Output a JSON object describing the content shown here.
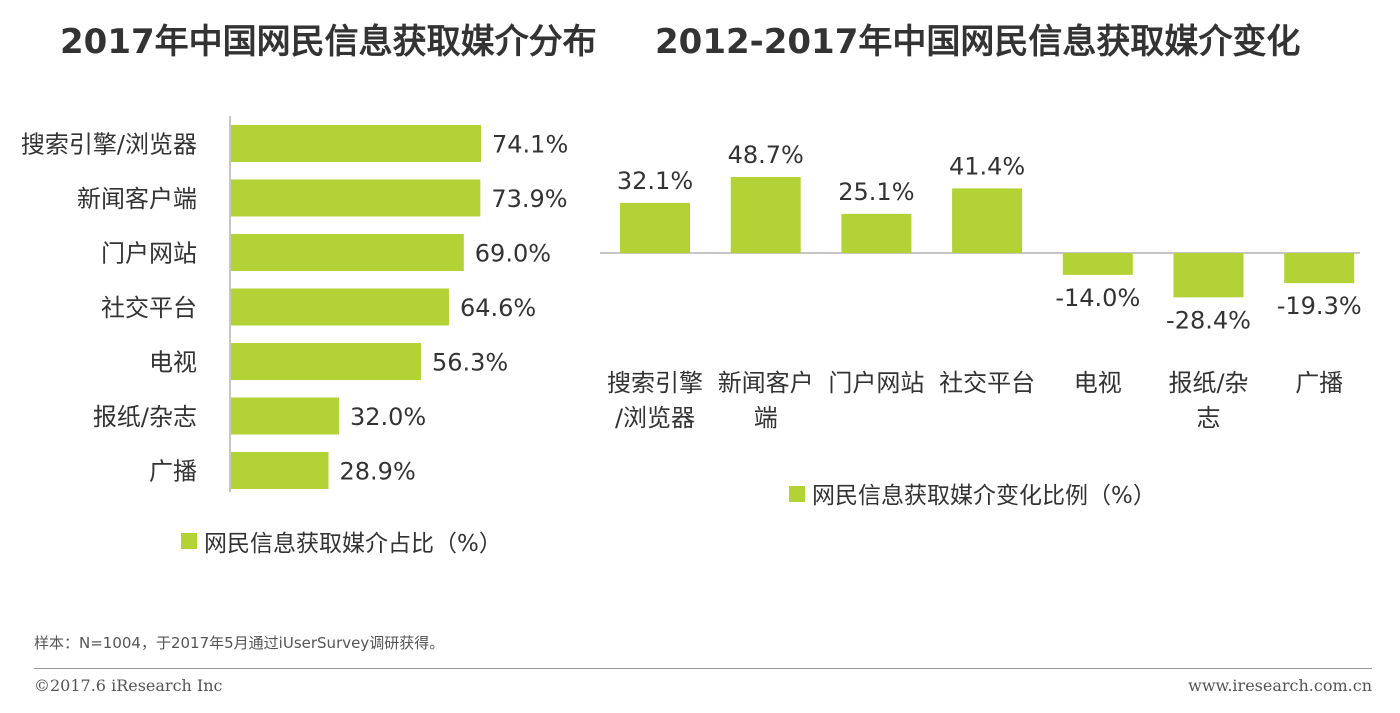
{
  "chart_data": [
    {
      "type": "bar",
      "orientation": "horizontal",
      "title": "2017年中国网民信息获取媒介分布",
      "categories": [
        "搜索引擎/浏览器",
        "新闻客户端",
        "门户网站",
        "社交平台",
        "电视",
        "报纸/杂志",
        "广播"
      ],
      "series": [
        {
          "name": "网民信息获取媒介占比（%）",
          "values": [
            74.1,
            73.9,
            69.0,
            64.6,
            56.3,
            32.0,
            28.9
          ]
        }
      ],
      "data_labels": [
        "74.1%",
        "73.9%",
        "69.0%",
        "64.6%",
        "56.3%",
        "32.0%",
        "28.9%"
      ],
      "xlim": [
        0,
        100
      ],
      "grid": false,
      "legend": "bottom"
    },
    {
      "type": "bar",
      "orientation": "vertical",
      "title": "2012-2017年中国网民信息获取媒介变化",
      "categories": [
        [
          "搜索引擎",
          "/浏览器"
        ],
        [
          "新闻客户",
          "端"
        ],
        [
          "门户网站"
        ],
        [
          "社交平台"
        ],
        [
          "电视"
        ],
        [
          "报纸/杂",
          "志"
        ],
        [
          "广播"
        ]
      ],
      "series": [
        {
          "name": "网民信息获取媒介变化比例（%）",
          "values": [
            32.1,
            48.7,
            25.1,
            41.4,
            -14.0,
            -28.4,
            -19.3
          ]
        }
      ],
      "data_labels": [
        "32.1%",
        "48.7%",
        "25.1%",
        "41.4%",
        "-14.0%",
        "-28.4%",
        "-19.3%"
      ],
      "ylim": [
        -30,
        50
      ],
      "grid": false,
      "legend": "bottom"
    }
  ],
  "footer": {
    "note": "样本：N=1004，于2017年5月通过iUserSurvey调研获得。",
    "copyright": "©2017.6 iResearch Inc",
    "website": "www.iresearch.com.cn"
  },
  "colors": {
    "bar": "#b2d235",
    "text": "#333333",
    "axis": "#b3b3b3"
  }
}
